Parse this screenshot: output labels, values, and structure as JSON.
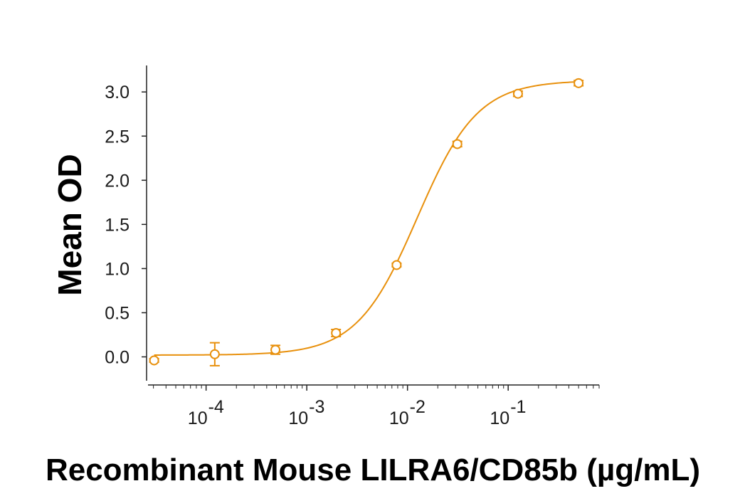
{
  "chart_data": {
    "type": "scatter",
    "title": "",
    "xlabel": "Recombinant Mouse LILRA6/CD85b (µg/mL)",
    "ylabel": "Mean OD",
    "x_scale": "log",
    "xlim": [
      2.65e-05,
      0.8
    ],
    "ylim": [
      -0.27,
      3.3
    ],
    "y_ticks": [
      "0.0",
      "0.5",
      "1.0",
      "1.5",
      "2.0",
      "2.5",
      "3.0"
    ],
    "x_tick_labels": [
      {
        "base": "10",
        "exp": "-4"
      },
      {
        "base": "10",
        "exp": "-3"
      },
      {
        "base": "10",
        "exp": "-2"
      },
      {
        "base": "10",
        "exp": "-1"
      }
    ],
    "color": "#E8900C",
    "series": [
      {
        "x": [
          3.05e-05,
          0.000122,
          0.000488,
          0.00195,
          0.0078,
          0.03125,
          0.125,
          0.5
        ],
        "y": [
          -0.04,
          0.03,
          0.08,
          0.27,
          1.04,
          2.41,
          2.98,
          3.1
        ],
        "err": [
          0.02,
          0.13,
          0.05,
          0.04,
          0.02,
          0.03,
          0.03,
          0.03
        ]
      }
    ],
    "fit": {
      "bottom": 0.02,
      "top": 3.13,
      "ec50": 0.0125,
      "hill": 1.45
    }
  }
}
